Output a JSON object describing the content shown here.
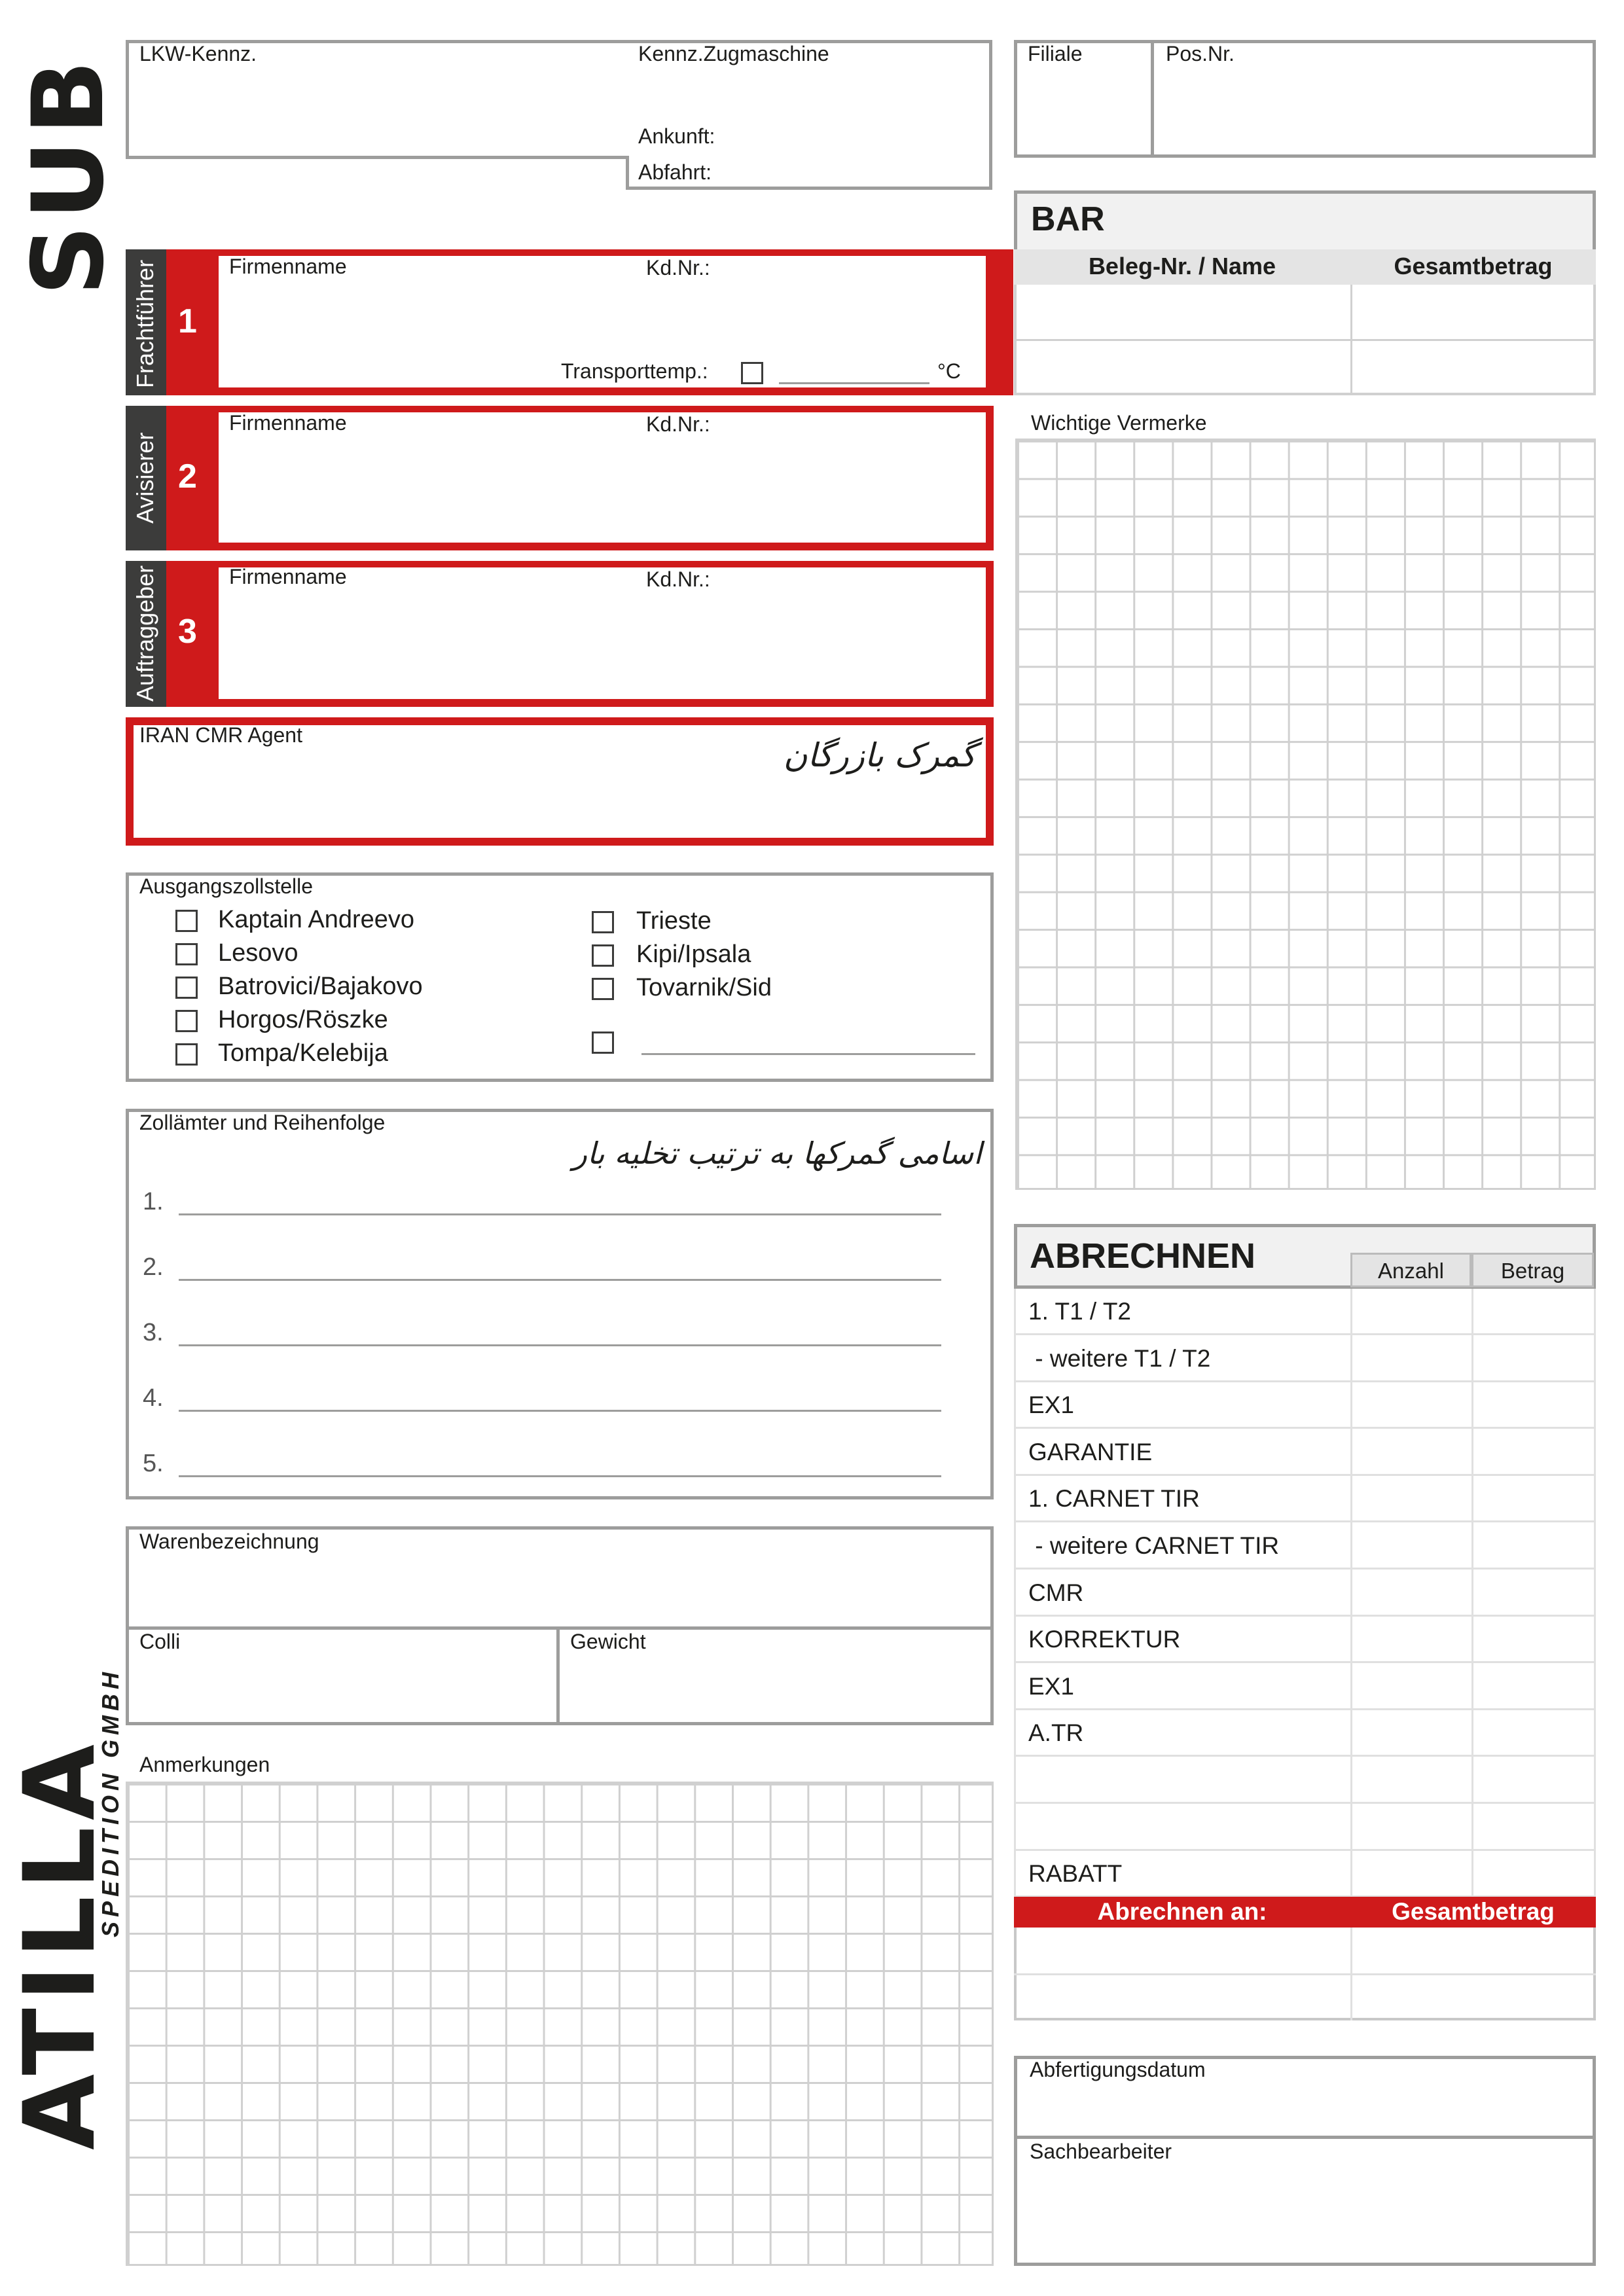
{
  "logos": {
    "top": "SUB",
    "bottom_main": "ATILLA",
    "bottom_sub": "SPEDITION GMBH"
  },
  "header": {
    "lkw": "LKW-Kennz.",
    "zugmaschine": "Kennz.Zugmaschine",
    "ankunft": "Ankunft:",
    "abfahrt": "Abfahrt:",
    "filiale": "Filiale",
    "posnr": "Pos.Nr."
  },
  "sections": [
    {
      "tab": "Frachtführer",
      "number": "1",
      "firm": "Firmenname",
      "kd": "Kd.Nr.:",
      "temp": "Transporttemp.:",
      "unit": "°C"
    },
    {
      "tab": "Avisierer",
      "number": "2",
      "firm": "Firmenname",
      "kd": "Kd.Nr.:"
    },
    {
      "tab": "Auftraggeber",
      "number": "3",
      "firm": "Firmenname",
      "kd": "Kd.Nr.:"
    }
  ],
  "iran": {
    "label": "IRAN CMR Agent",
    "handwritten": "گمرک بازرگان"
  },
  "ausgang": {
    "title": "Ausgangszollstelle",
    "left": [
      "Kaptain Andreevo",
      "Lesovo",
      "Batrovici/Bajakovo",
      "Horgos/Röszke",
      "Tompa/Kelebija"
    ],
    "right": [
      "Trieste",
      "Kipi/Ipsala",
      "Tovarnik/Sid"
    ]
  },
  "zollaemter": {
    "title": "Zollämter und Reihenfolge",
    "handwritten": "اسامی گمرکها به ترتیب تخلیه بار",
    "numbers": [
      "1.",
      "2.",
      "3.",
      "4.",
      "5."
    ]
  },
  "waren": {
    "title": "Warenbezeichnung",
    "colli": "Colli",
    "gewicht": "Gewicht"
  },
  "anmerkungen": "Anmerkungen",
  "bar": {
    "title": "BAR",
    "col1": "Beleg-Nr. / Name",
    "col2": "Gesamtbetrag"
  },
  "vermerke": "Wichtige Vermerke",
  "abrechnen": {
    "title": "ABRECHNEN",
    "anzahl": "Anzahl",
    "betrag": "Betrag",
    "rows": [
      "1. T1 / T2",
      " - weitere T1 / T2",
      "EX1",
      "GARANTIE",
      "1. CARNET TIR",
      " - weitere CARNET TIR",
      "CMR",
      "KORREKTUR",
      "EX1",
      "A.TR",
      "",
      "",
      "RABATT"
    ],
    "an": "Abrechnen an:",
    "gesamt": "Gesamtbetrag"
  },
  "footer": {
    "datum": "Abfertigungsdatum",
    "sachbearbeiter": "Sachbearbeiter"
  },
  "colors": {
    "red": "#cf1a1b",
    "dark": "#3c3c3b",
    "gray": "#9d9d9c"
  }
}
